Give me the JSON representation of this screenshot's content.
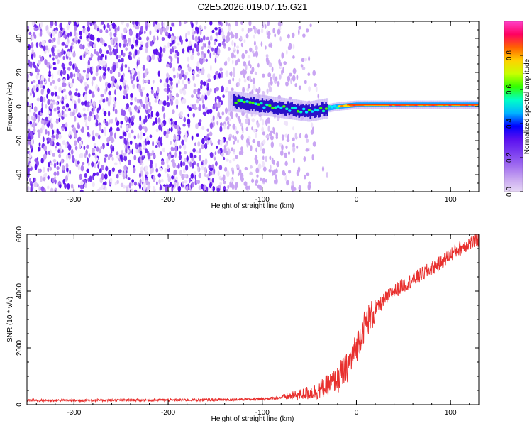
{
  "title": "C2E5.2026.019.07.15.G21",
  "colors": {
    "snr_line": "#e8302e",
    "background": "#ffffff",
    "axis": "#000000",
    "colormap": [
      "#e6d7f5",
      "#c7a6f0",
      "#a06cf0",
      "#7a3cf0",
      "#5a10f0",
      "#0000ff",
      "#00b4ff",
      "#00ffc8",
      "#32ff00",
      "#c8ff00",
      "#ffd200",
      "#ff6400",
      "#ff0060",
      "#ff40c8"
    ]
  },
  "chart_data": [
    {
      "type": "heatmap",
      "xlabel": "Height of straight line (km)",
      "ylabel": "Frequency (Hz)",
      "xlim": [
        -350,
        130
      ],
      "ylim": [
        -50,
        50
      ],
      "xticks": [
        -300,
        -200,
        -100,
        0,
        100
      ],
      "yticks": [
        -40,
        -20,
        0,
        20,
        40
      ],
      "noise_region_x": [
        -350,
        -40
      ],
      "signal_track": {
        "x_start": -130,
        "x_end": 130,
        "frequency_at_x_start": 3,
        "frequency_at_x_end": 1,
        "description_samples": [
          {
            "x": -130,
            "freq": 3
          },
          {
            "x": -90,
            "freq": 0
          },
          {
            "x": -50,
            "freq": -3
          },
          {
            "x": -20,
            "freq": 0
          },
          {
            "x": 0,
            "freq": 1
          },
          {
            "x": 130,
            "freq": 1
          }
        ]
      },
      "colorbar": {
        "label": "Normalized spectral amplitude",
        "range": [
          0.0,
          1.0
        ],
        "ticks": [
          "0.0",
          "0.2",
          "0.4",
          "0.6",
          "0.8"
        ]
      }
    },
    {
      "type": "line",
      "xlabel": "Height of straight line (km)",
      "ylabel": "SNR (10 * v/v)",
      "xlim": [
        -350,
        130
      ],
      "ylim": [
        0,
        6000
      ],
      "xticks": [
        -300,
        -200,
        -100,
        0,
        100
      ],
      "yticks": [
        0,
        2000,
        4000,
        6000
      ],
      "series": [
        {
          "name": "SNR",
          "x": [
            -350,
            -300,
            -250,
            -200,
            -150,
            -100,
            -80,
            -60,
            -40,
            -30,
            -20,
            -10,
            0,
            5,
            10,
            20,
            30,
            40,
            50,
            60,
            70,
            80,
            90,
            100,
            110,
            120,
            130
          ],
          "y": [
            150,
            150,
            160,
            160,
            170,
            200,
            250,
            350,
            500,
            700,
            900,
            1300,
            2000,
            2500,
            2900,
            3300,
            3700,
            4000,
            4200,
            4400,
            4600,
            4800,
            5000,
            5300,
            5500,
            5700,
            5800
          ]
        }
      ]
    }
  ]
}
